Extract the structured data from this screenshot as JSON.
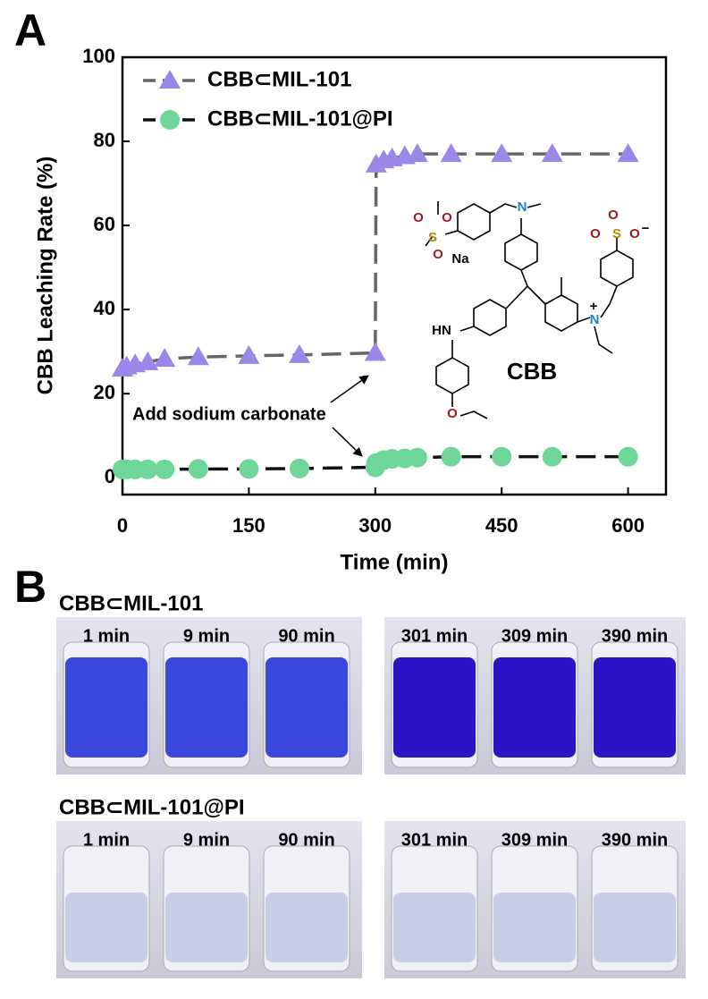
{
  "chart_data": {
    "type": "line",
    "panel_label": "A",
    "xlabel": "Time (min)",
    "ylabel": "CBB Leaching  Rate (%)",
    "x": [
      0,
      5,
      15,
      30,
      50,
      90,
      150,
      210,
      300,
      301,
      310,
      320,
      335,
      350,
      390,
      450,
      510,
      600
    ],
    "series": [
      {
        "name": "CBB⊂MIL-101",
        "color": "#9b87e8",
        "line_color": "#666666",
        "marker": "triangle",
        "values": [
          26,
          26.5,
          27,
          27.5,
          28.3,
          28.7,
          29,
          29.2,
          29.7,
          74.5,
          75.5,
          76,
          76.5,
          77,
          77,
          77,
          77,
          77
        ]
      },
      {
        "name": "CBB⊂MIL-101@PI",
        "color": "#6fd69a",
        "line_color": "#111111",
        "marker": "circle",
        "values": [
          2,
          2,
          2,
          2,
          2,
          2.1,
          2.1,
          2.2,
          2.5,
          3.5,
          4.2,
          4.5,
          4.6,
          4.8,
          5,
          5,
          5,
          5
        ]
      }
    ],
    "xlim": [
      0,
      645
    ],
    "xticks": [
      0,
      150,
      300,
      450,
      600
    ],
    "ylim": [
      -4,
      100
    ],
    "yticks": [
      0,
      20,
      40,
      60,
      80,
      100
    ],
    "legend": "upper left",
    "annotation": "Add sodium carbonate",
    "structure": {
      "name": "CBB",
      "atoms": [
        "S",
        "O",
        "O",
        "O",
        "Na",
        "N",
        "HN",
        "O",
        "N",
        "+",
        "S",
        "O",
        "O",
        "O",
        "−"
      ]
    }
  },
  "panel_b": {
    "label": "B",
    "rows": [
      {
        "title": "CBB⊂MIL-101",
        "times": [
          "1 min",
          "9 min",
          "90 min",
          "301 min",
          "309 min",
          "390 min"
        ]
      },
      {
        "title": "CBB⊂MIL-101@PI",
        "times": [
          "1 min",
          "9 min",
          "90 min",
          "301 min",
          "309 min",
          "390 min"
        ]
      }
    ]
  }
}
